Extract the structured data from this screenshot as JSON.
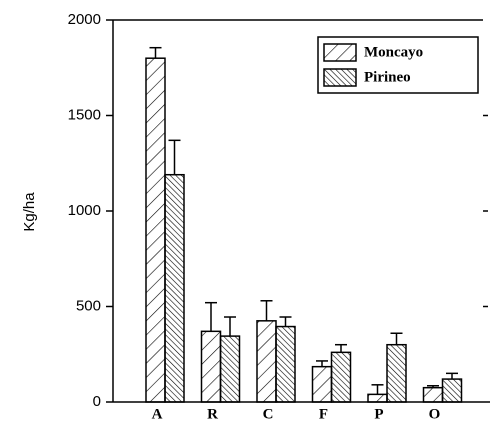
{
  "chart_data": {
    "type": "bar",
    "y_label": "Kg/ha",
    "categories": [
      "A",
      "R",
      "C",
      "F",
      "P",
      "O"
    ],
    "series": [
      {
        "name": "Moncayo",
        "color": "#000000",
        "values": [
          1800,
          370,
          425,
          185,
          40,
          75
        ],
        "errors": [
          55,
          150,
          105,
          30,
          50,
          10
        ]
      },
      {
        "name": "Pirineo",
        "color": "#000000",
        "values": [
          1190,
          345,
          395,
          260,
          300,
          120
        ],
        "errors": [
          180,
          100,
          50,
          40,
          60,
          30
        ]
      }
    ],
    "ylim": [
      0,
      2000
    ],
    "yticks": [
      0,
      500,
      1000,
      1500,
      2000
    ],
    "legend": "upper right"
  }
}
